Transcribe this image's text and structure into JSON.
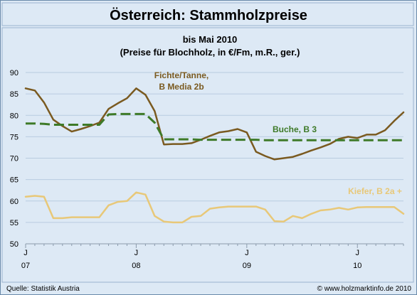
{
  "chart_data": {
    "type": "line",
    "title": "Österreich: Stammholzpreise",
    "subtitle_lines": [
      "bis Mai 2010",
      "(Preise für Blochholz, in €/Fm, m.R., ger.)"
    ],
    "ylim": [
      50,
      90
    ],
    "yticks": [
      50,
      55,
      60,
      65,
      70,
      75,
      80,
      85,
      90
    ],
    "xlim": [
      0,
      41
    ],
    "xticks": [
      {
        "month_index": 0,
        "label": "J",
        "year": "07"
      },
      {
        "month_index": 12,
        "label": "J",
        "year": "08"
      },
      {
        "month_index": 24,
        "label": "J",
        "year": "09"
      },
      {
        "month_index": 36,
        "label": "J",
        "year": "10"
      }
    ],
    "grid": "horizontal",
    "series": [
      {
        "name": "Fichte/Tanne,",
        "name_line2": "B Media 2b",
        "color": "#7a5a20",
        "style": "solid",
        "values": [
          86.3,
          85.8,
          83,
          79,
          77.5,
          76.2,
          76.8,
          77.5,
          78.3,
          81.5,
          82.8,
          84,
          86.3,
          84.8,
          81,
          73.2,
          73.3,
          73.3,
          73.5,
          74.3,
          75.2,
          76,
          76.3,
          76.8,
          76,
          71.5,
          70.5,
          69.7,
          70,
          70.3,
          71,
          71.8,
          72.5,
          73.3,
          74.5,
          75,
          74.7,
          75.5,
          75.5,
          76.5,
          78.7,
          80.7
        ]
      },
      {
        "name": "Buche, B 3",
        "color": "#3e7a28",
        "style": "dashed",
        "values": [
          78.1,
          78.1,
          78,
          77.8,
          77.8,
          77.8,
          77.8,
          77.8,
          77.8,
          80.2,
          80.3,
          80.3,
          80.3,
          80.3,
          78.3,
          74.4,
          74.4,
          74.4,
          74.4,
          74.3,
          74.3,
          74.3,
          74.3,
          74.3,
          74.3,
          74.3,
          74.2,
          74.2,
          74.2,
          74.2,
          74.2,
          74.2,
          74.2,
          74.2,
          74.2,
          74.2,
          74.2,
          74.2,
          74.2,
          74.2,
          74.2,
          74.2
        ]
      },
      {
        "name": "Kiefer, B 2a +",
        "color": "#e8c878",
        "style": "solid",
        "values": [
          61,
          61.2,
          61,
          56,
          56,
          56.2,
          56.2,
          56.2,
          56.2,
          59,
          59.8,
          60,
          62,
          61.5,
          56.5,
          55.2,
          55,
          55,
          56.3,
          56.5,
          58.2,
          58.5,
          58.7,
          58.7,
          58.7,
          58.7,
          58,
          55.3,
          55.2,
          56.5,
          56,
          57,
          57.8,
          58,
          58.4,
          58,
          58.5,
          58.6,
          58.6,
          58.6,
          58.6,
          57
        ]
      }
    ]
  },
  "footer": {
    "source": "Quelle: Statistik Austria",
    "credit": "© www.holzmarktinfo.de 2010"
  }
}
